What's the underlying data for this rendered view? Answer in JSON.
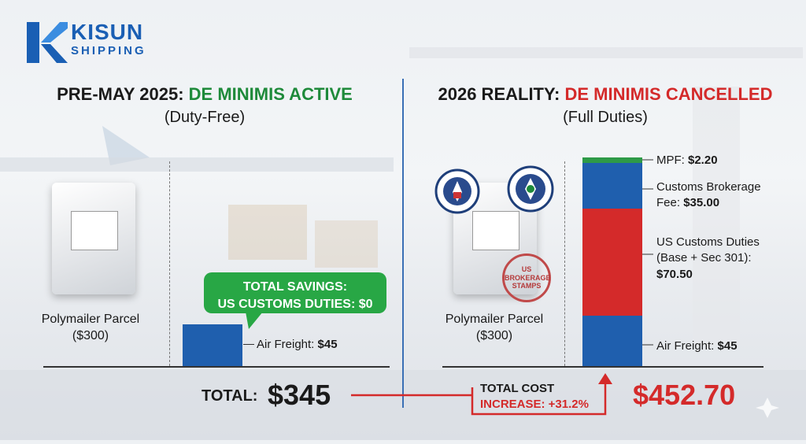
{
  "brand": {
    "name": "KISUN",
    "sub": "SHIPPING"
  },
  "left": {
    "title_prefix": "PRE-MAY 2025: ",
    "title_highlight": "DE MINIMIS ACTIVE",
    "subtitle": "(Duty-Free)",
    "parcel_label": "Polymailer Parcel",
    "parcel_value": "($300)",
    "savings_line1": "TOTAL SAVINGS:",
    "savings_line2": "US CUSTOMS DUTIES: $0",
    "freight_label": "Air Freight: ",
    "freight_value": "$45",
    "total_label": "TOTAL:",
    "total_value": "$345"
  },
  "right": {
    "title_prefix": "2026 REALITY: ",
    "title_highlight": "DE MINIMIS CANCELLED",
    "subtitle": "(Full Duties)",
    "parcel_label": "Polymailer Parcel",
    "parcel_value": "($300)",
    "stamp_text_line1": "US",
    "stamp_text_line2": "BROKERAGE",
    "stamp_text_line3": "STAMPS",
    "segments": {
      "mpf_label": "MPF: ",
      "mpf_value": "$2.20",
      "brokerage_label_1": "Customs Brokerage",
      "brokerage_label_2": "Fee: ",
      "brokerage_value": "$35.00",
      "duties_label_1": "US Customs Duties",
      "duties_label_2": "(Base + Sec 301):",
      "duties_value": "$70.50",
      "freight_label": "Air Freight: ",
      "freight_value": "$45"
    },
    "increase_line1": "TOTAL COST",
    "increase_line2": "INCREASE: +31.2%",
    "total_value": "$452.70"
  },
  "colors": {
    "blue": "#1f5fae",
    "red": "#d42a2a",
    "green": "#2e9a47",
    "bubble_green": "#28a745"
  }
}
